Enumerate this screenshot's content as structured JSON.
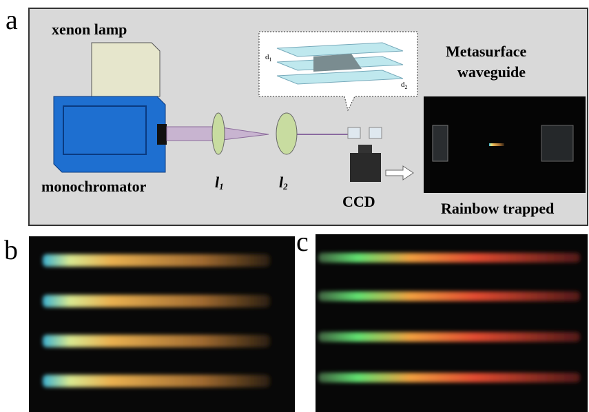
{
  "panels": [
    {
      "label": "a",
      "texts": {
        "lamp": "xenon lamp",
        "title": "Metasurface",
        "title2": "waveguide",
        "mono": "monochromator",
        "lens1": {
          "main": "l",
          "sub": "1"
        },
        "lens2": {
          "main": "l",
          "sub": "2"
        },
        "ccd": "CCD",
        "caption": "Rainbow trapped",
        "d1": {
          "main": "d",
          "sub": "1"
        },
        "d2": {
          "main": "d",
          "sub": "2"
        }
      }
    },
    {
      "label": "b"
    },
    {
      "label": "c"
    }
  ]
}
